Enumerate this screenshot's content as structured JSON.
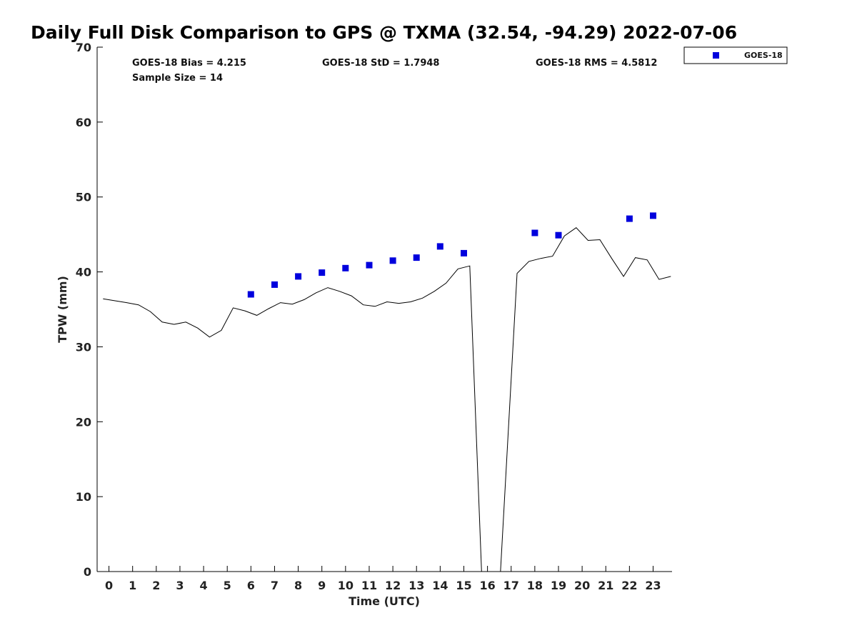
{
  "chart_data": {
    "type": "line",
    "title": "Daily Full Disk Comparison to GPS @ TXMA (32.54, -94.29) 2022-07-06",
    "xlabel": "Time (UTC)",
    "ylabel": "TPW (mm)",
    "xlim": [
      -0.5,
      23.8
    ],
    "ylim": [
      0,
      70
    ],
    "x_ticks": [
      0,
      1,
      2,
      3,
      4,
      5,
      6,
      7,
      8,
      9,
      10,
      11,
      12,
      13,
      14,
      15,
      16,
      17,
      18,
      19,
      20,
      21,
      22,
      23
    ],
    "y_ticks": [
      0,
      10,
      20,
      30,
      40,
      50,
      60,
      70
    ],
    "grid": false,
    "legend_position": "top-right (outside plot)",
    "stats": {
      "bias": "GOES-18 Bias = 4.215",
      "std": "GOES-18 StD = 1.7948",
      "rms": "GOES-18 RMS = 4.5812",
      "sample_size": "Sample Size = 14"
    },
    "series": [
      {
        "style": "line",
        "color": "#000000",
        "points": [
          [
            -0.25,
            36.4
          ],
          [
            0.75,
            35.9
          ],
          [
            1.25,
            35.6
          ],
          [
            1.75,
            34.7
          ],
          [
            2.25,
            33.3
          ],
          [
            2.75,
            33.0
          ],
          [
            3.25,
            33.3
          ],
          [
            3.75,
            32.5
          ],
          [
            4.25,
            31.3
          ],
          [
            4.75,
            32.2
          ],
          [
            5.25,
            35.2
          ],
          [
            5.75,
            34.8
          ],
          [
            6.25,
            34.2
          ],
          [
            6.75,
            35.1
          ],
          [
            7.25,
            35.9
          ],
          [
            7.75,
            35.7
          ],
          [
            8.25,
            36.3
          ],
          [
            8.75,
            37.2
          ],
          [
            9.25,
            37.9
          ],
          [
            9.75,
            37.4
          ],
          [
            10.25,
            36.8
          ],
          [
            10.75,
            35.6
          ],
          [
            11.25,
            35.4
          ],
          [
            11.75,
            36.0
          ],
          [
            12.25,
            35.8
          ],
          [
            12.75,
            36.0
          ],
          [
            13.25,
            36.5
          ],
          [
            13.75,
            37.4
          ],
          [
            14.25,
            38.5
          ],
          [
            14.75,
            40.4
          ],
          [
            15.25,
            40.8
          ],
          [
            15.75,
            0.0
          ],
          [
            16.55,
            0.0
          ],
          [
            17.25,
            39.8
          ],
          [
            17.75,
            41.4
          ],
          [
            18.25,
            41.8
          ],
          [
            18.75,
            42.1
          ],
          [
            19.25,
            44.8
          ],
          [
            19.75,
            45.9
          ],
          [
            20.25,
            44.2
          ],
          [
            20.75,
            44.3
          ],
          [
            21.25,
            41.8
          ],
          [
            21.75,
            39.4
          ],
          [
            22.25,
            41.9
          ],
          [
            22.75,
            41.6
          ],
          [
            23.25,
            39.0
          ],
          [
            23.75,
            39.4
          ]
        ]
      },
      {
        "name": "GOES-18",
        "style": "scatter",
        "color": "#0000dd",
        "points": [
          [
            6,
            37.0
          ],
          [
            7,
            38.3
          ],
          [
            8,
            39.4
          ],
          [
            9,
            39.9
          ],
          [
            10,
            40.5
          ],
          [
            11,
            40.9
          ],
          [
            12,
            41.5
          ],
          [
            13,
            41.9
          ],
          [
            14,
            43.4
          ],
          [
            15,
            42.5
          ],
          [
            18,
            45.2
          ],
          [
            19,
            44.9
          ],
          [
            22,
            47.1
          ],
          [
            23,
            47.5
          ]
        ]
      }
    ]
  }
}
